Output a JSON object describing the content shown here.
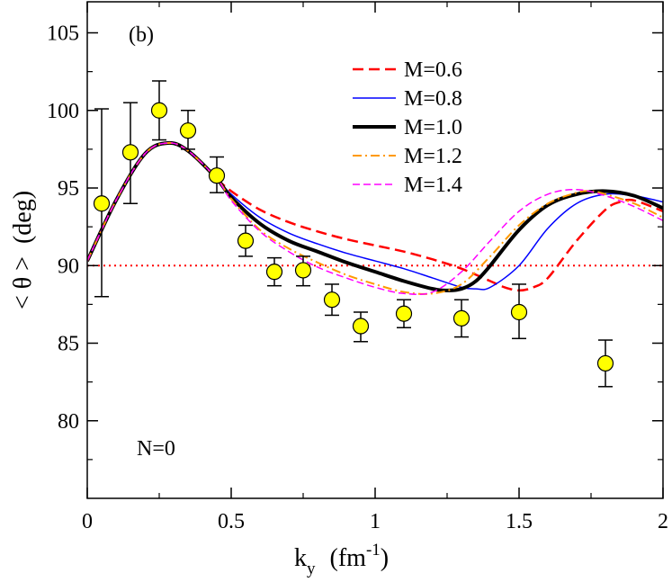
{
  "chart_data": {
    "type": "line",
    "panel_label": "(b)",
    "annotation": "N=0",
    "xlabel": {
      "main": "k",
      "sub": "y",
      "unit_open": "(fm",
      "unit_sup": "-1",
      "unit_close": ")"
    },
    "ylabel": "< θ >  (deg)",
    "xlim": [
      0,
      2
    ],
    "ylim": [
      75,
      107
    ],
    "xticks": [
      0,
      0.5,
      1,
      1.5,
      2
    ],
    "xtick_labels": [
      "0",
      "0.5",
      "1",
      "1.5",
      "2"
    ],
    "yticks": [
      80,
      85,
      90,
      95,
      100,
      105
    ],
    "ytick_labels": [
      "80",
      "85",
      "90",
      "95",
      "100",
      "105"
    ],
    "reference_line": {
      "y": 90,
      "color": "#ff0000",
      "style": "dotted"
    },
    "legend_position": "top-right",
    "series": [
      {
        "name": "M=0.6",
        "color": "#ff0000",
        "width": 2.5,
        "dash": "12,6",
        "x": [
          0.0,
          0.1,
          0.2,
          0.28,
          0.35,
          0.45,
          0.5,
          0.6,
          0.7,
          0.8,
          0.9,
          1.0,
          1.1,
          1.2,
          1.3,
          1.4,
          1.45,
          1.5,
          1.55,
          1.6,
          1.7,
          1.8,
          1.85,
          1.9,
          2.0
        ],
        "y": [
          90.3,
          94.2,
          97.2,
          97.9,
          97.4,
          95.6,
          94.8,
          93.6,
          92.8,
          92.2,
          91.7,
          91.3,
          90.9,
          90.4,
          89.8,
          89.0,
          88.6,
          88.4,
          88.6,
          89.2,
          91.6,
          93.6,
          94.1,
          94.2,
          93.5
        ]
      },
      {
        "name": "M=0.8",
        "color": "#0000ff",
        "width": 1.5,
        "dash": "",
        "x": [
          0.0,
          0.1,
          0.2,
          0.28,
          0.35,
          0.45,
          0.5,
          0.6,
          0.7,
          0.8,
          0.9,
          1.0,
          1.1,
          1.2,
          1.3,
          1.35,
          1.4,
          1.5,
          1.6,
          1.7,
          1.8,
          1.9,
          2.0
        ],
        "y": [
          90.3,
          94.2,
          97.2,
          97.9,
          97.4,
          95.6,
          94.6,
          93.1,
          92.1,
          91.4,
          90.8,
          90.3,
          89.8,
          89.2,
          88.6,
          88.5,
          88.6,
          90.0,
          92.4,
          94.0,
          94.6,
          94.5,
          94.1
        ]
      },
      {
        "name": "M=1.0",
        "color": "#000000",
        "width": 4,
        "dash": "",
        "x": [
          0.0,
          0.1,
          0.2,
          0.28,
          0.35,
          0.45,
          0.5,
          0.6,
          0.7,
          0.8,
          0.9,
          1.0,
          1.1,
          1.2,
          1.25,
          1.3,
          1.35,
          1.4,
          1.5,
          1.6,
          1.7,
          1.8,
          1.9,
          2.0
        ],
        "y": [
          90.3,
          94.2,
          97.2,
          97.9,
          97.4,
          95.6,
          94.4,
          92.7,
          91.6,
          90.9,
          90.2,
          89.6,
          89.0,
          88.5,
          88.4,
          88.5,
          89.0,
          90.0,
          92.3,
          93.9,
          94.6,
          94.8,
          94.5,
          93.7
        ]
      },
      {
        "name": "M=1.2",
        "color": "#ff9900",
        "width": 2,
        "dash": "10,4,2,4",
        "x": [
          0.0,
          0.1,
          0.2,
          0.28,
          0.35,
          0.45,
          0.5,
          0.6,
          0.7,
          0.8,
          0.9,
          1.0,
          1.1,
          1.2,
          1.3,
          1.4,
          1.5,
          1.6,
          1.7,
          1.75,
          1.8,
          1.9,
          2.0
        ],
        "y": [
          90.3,
          94.2,
          97.2,
          97.9,
          97.4,
          95.6,
          94.3,
          92.3,
          91.1,
          90.2,
          89.4,
          88.8,
          88.3,
          88.2,
          88.8,
          90.6,
          92.6,
          94.0,
          94.7,
          94.8,
          94.6,
          94.0,
          93.1
        ]
      },
      {
        "name": "M=1.4",
        "color": "#ff00ff",
        "width": 1.5,
        "dash": "8,4",
        "x": [
          0.0,
          0.1,
          0.2,
          0.28,
          0.35,
          0.45,
          0.5,
          0.6,
          0.7,
          0.8,
          0.9,
          1.0,
          1.1,
          1.2,
          1.3,
          1.4,
          1.5,
          1.6,
          1.7,
          1.8,
          1.9,
          2.0
        ],
        "y": [
          90.3,
          94.2,
          97.2,
          97.9,
          97.4,
          95.6,
          94.2,
          92.2,
          90.9,
          89.9,
          89.2,
          88.6,
          88.2,
          88.3,
          89.6,
          91.6,
          93.5,
          94.6,
          94.9,
          94.5,
          93.8,
          92.9
        ]
      }
    ],
    "data_points": {
      "marker_color": "#ffff00",
      "x": [
        0.05,
        0.15,
        0.25,
        0.35,
        0.45,
        0.55,
        0.65,
        0.75,
        0.85,
        0.95,
        1.1,
        1.3,
        1.5,
        1.8
      ],
      "y": [
        94.0,
        97.3,
        100.0,
        98.7,
        95.8,
        91.6,
        89.6,
        89.7,
        87.8,
        86.1,
        86.9,
        86.6,
        87.0,
        83.7
      ],
      "err_low": [
        88.0,
        94.0,
        98.1,
        97.5,
        94.7,
        90.6,
        88.7,
        88.7,
        86.8,
        85.1,
        86.0,
        85.4,
        85.3,
        82.2
      ],
      "err_high": [
        100.1,
        100.5,
        101.9,
        100.0,
        97.0,
        92.6,
        90.5,
        90.6,
        88.8,
        87.0,
        87.8,
        87.8,
        88.8,
        85.2
      ]
    }
  }
}
